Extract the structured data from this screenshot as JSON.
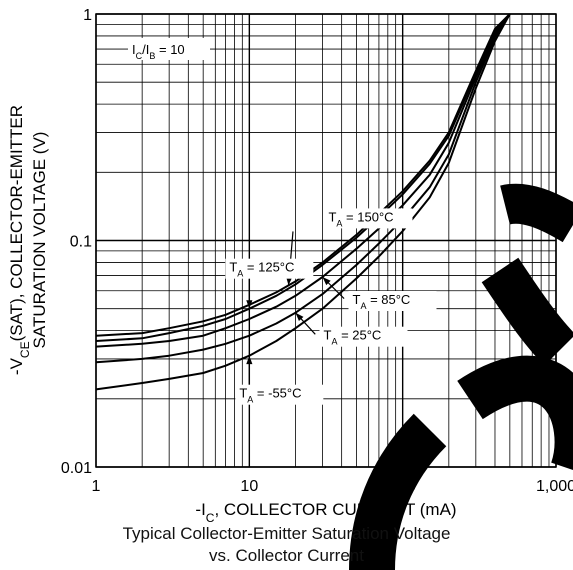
{
  "chart_data": {
    "type": "line",
    "xscale": "log",
    "yscale": "log",
    "xlim": [
      1,
      1000
    ],
    "ylim": [
      0.01,
      1
    ],
    "grid": true,
    "x_major_ticks": [
      1,
      10,
      100,
      1000
    ],
    "x_tick_labels": [
      "1",
      "10",
      "100",
      "1,000"
    ],
    "y_major_ticks": [
      0.01,
      0.1,
      1
    ],
    "y_tick_labels": [
      "0.01",
      "0.1",
      "1"
    ],
    "xlabel": "-I_C, COLLECTOR CURRENT (mA)",
    "ylabel_line1": "-V_CE(SAT), COLLECTOR-EMITTER",
    "ylabel_line2": "SATURATION VOLTAGE (V)",
    "caption_line1": "Typical Collector-Emitter Saturation Voltage",
    "caption_line2": "vs. Collector Current",
    "condition": "I_C/I_B = 10",
    "series": [
      {
        "name": "T_A = 150°C",
        "x": [
          1,
          2,
          3,
          5,
          7,
          10,
          15,
          20,
          30,
          50,
          70,
          100,
          150,
          200,
          300,
          400,
          500
        ],
        "y": [
          0.038,
          0.039,
          0.041,
          0.044,
          0.047,
          0.052,
          0.059,
          0.066,
          0.08,
          0.106,
          0.131,
          0.165,
          0.225,
          0.3,
          0.56,
          0.86,
          1.15
        ]
      },
      {
        "name": "T_A = 125°C",
        "x": [
          1,
          2,
          3,
          5,
          7,
          10,
          15,
          20,
          30,
          50,
          70,
          100,
          150,
          200,
          300,
          400,
          500
        ],
        "y": [
          0.036,
          0.037,
          0.039,
          0.042,
          0.045,
          0.05,
          0.057,
          0.064,
          0.078,
          0.103,
          0.127,
          0.16,
          0.218,
          0.29,
          0.545,
          0.84,
          1.12
        ]
      },
      {
        "name": "T_A = 85°C",
        "x": [
          1,
          2,
          3,
          5,
          7,
          10,
          15,
          20,
          30,
          50,
          70,
          100,
          150,
          200,
          300,
          400,
          500
        ],
        "y": [
          0.034,
          0.035,
          0.036,
          0.038,
          0.041,
          0.045,
          0.051,
          0.057,
          0.069,
          0.092,
          0.113,
          0.143,
          0.195,
          0.27,
          0.525,
          0.815,
          1.09
        ]
      },
      {
        "name": "T_A = 25°C",
        "x": [
          1,
          2,
          3,
          5,
          7,
          10,
          15,
          20,
          30,
          50,
          70,
          100,
          150,
          200,
          300,
          400,
          500
        ],
        "y": [
          0.029,
          0.03,
          0.031,
          0.033,
          0.035,
          0.038,
          0.043,
          0.048,
          0.058,
          0.078,
          0.097,
          0.124,
          0.172,
          0.24,
          0.5,
          0.79,
          1.06
        ]
      },
      {
        "name": "T_A = -55°C",
        "x": [
          1,
          2,
          3,
          5,
          7,
          10,
          15,
          20,
          30,
          50,
          70,
          100,
          150,
          200,
          300,
          400,
          500
        ],
        "y": [
          0.022,
          0.0235,
          0.0245,
          0.026,
          0.028,
          0.031,
          0.036,
          0.041,
          0.05,
          0.068,
          0.085,
          0.11,
          0.155,
          0.22,
          0.47,
          0.76,
          1.03
        ]
      }
    ],
    "annotations": [
      {
        "text": "T_A = 150°C",
        "series": 0,
        "at_x": 18
      },
      {
        "text": "T_A = 125°C",
        "series": 1,
        "at_x": 10
      },
      {
        "text": "T_A = 85°C",
        "series": 2,
        "at_x": 30
      },
      {
        "text": "T_A = 25°C",
        "series": 3,
        "at_x": 20
      },
      {
        "text": "T_A = -55°C",
        "series": 4,
        "at_x": 10
      }
    ],
    "watermark_color": "#000000"
  }
}
